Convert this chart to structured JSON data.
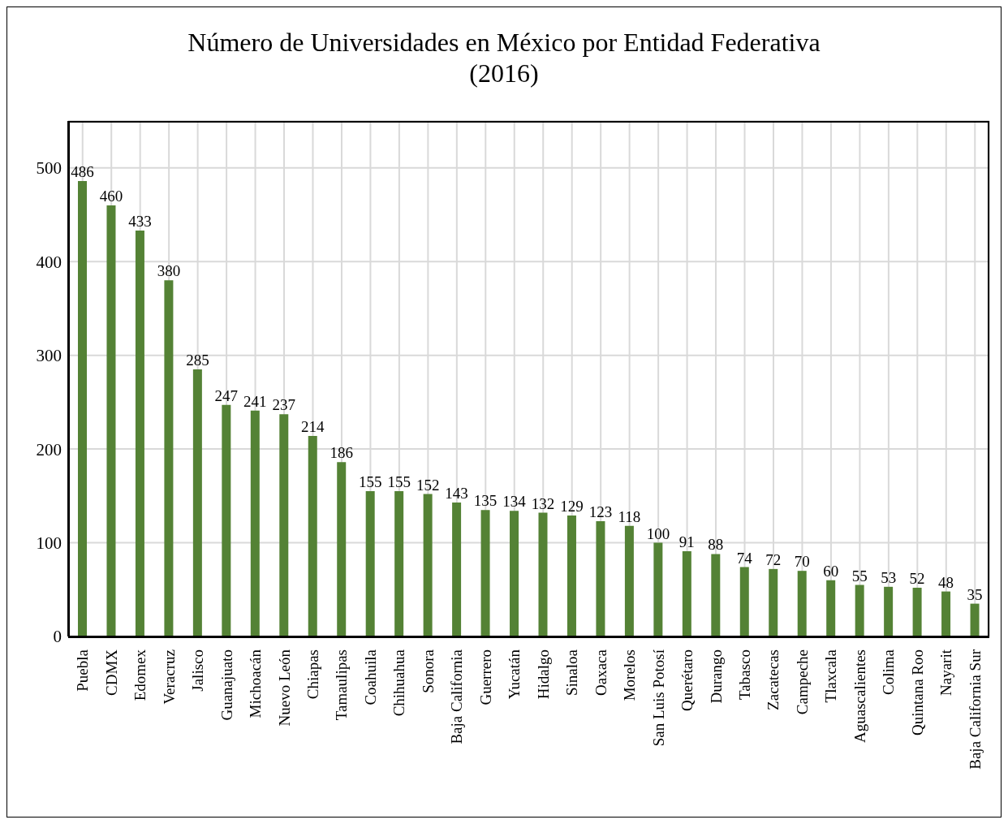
{
  "chart_data": {
    "type": "bar",
    "title": "Número de Universidades en México por Entidad Federativa\n(2016)",
    "categories": [
      "Puebla",
      "CDMX",
      "Edomex",
      "Veracruz",
      "Jalisco",
      "Guanajuato",
      "Michoacán",
      "Nuevo León",
      "Chiapas",
      "Tamaulipas",
      "Coahuila",
      "Chihuahua",
      "Sonora",
      "Baja California",
      "Guerrero",
      "Yucatán",
      "Hidalgo",
      "Sinaloa",
      "Oaxaca",
      "Morelos",
      "San Luis Potosí",
      "Querétaro",
      "Durango",
      "Tabasco",
      "Zacatecas",
      "Campeche",
      "Tlaxcala",
      "Aguascalientes",
      "Colima",
      "Quintana Roo",
      "Nayarit",
      "Baja California Sur"
    ],
    "values": [
      486,
      460,
      433,
      380,
      285,
      247,
      241,
      237,
      214,
      186,
      155,
      155,
      152,
      143,
      135,
      134,
      132,
      129,
      123,
      118,
      100,
      91,
      88,
      74,
      72,
      70,
      60,
      55,
      53,
      52,
      48,
      35
    ],
    "color": "#548235",
    "ylim": [
      0,
      550
    ],
    "yticks": [
      0,
      100,
      200,
      300,
      400,
      500
    ],
    "grid": true,
    "data_labels": true,
    "legend": false
  }
}
